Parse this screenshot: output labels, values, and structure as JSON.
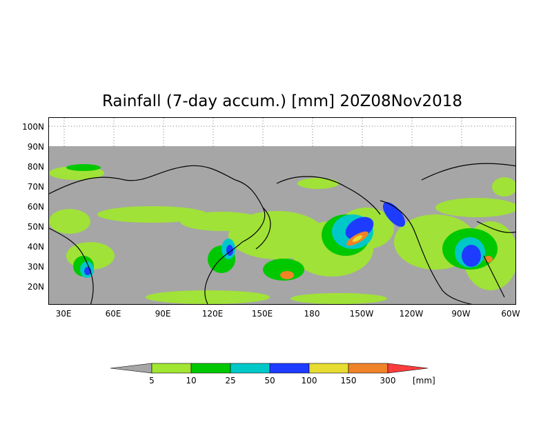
{
  "title": "Rainfall (7-day accum.) [mm] 20Z08Nov2018",
  "lat_labels": [
    "100N",
    "90N",
    "80N",
    "70N",
    "60N",
    "50N",
    "40N",
    "30N",
    "20N"
  ],
  "lon_labels": [
    "30E",
    "60E",
    "90E",
    "120E",
    "150E",
    "180",
    "150W",
    "120W",
    "90W",
    "60W"
  ],
  "colorbar": {
    "labels": [
      "5",
      "10",
      "25",
      "50",
      "100",
      "150",
      "300"
    ],
    "unit": "[mm]",
    "colors": {
      "below": "#a6a6a6",
      "c5_10": "#a0e632",
      "c10_25": "#00c800",
      "c25_50": "#00c8c8",
      "c50_100": "#1e3cff",
      "c100_150": "#e6dc32",
      "c150_300": "#f08228",
      "above": "#fa3c3c"
    }
  }
}
